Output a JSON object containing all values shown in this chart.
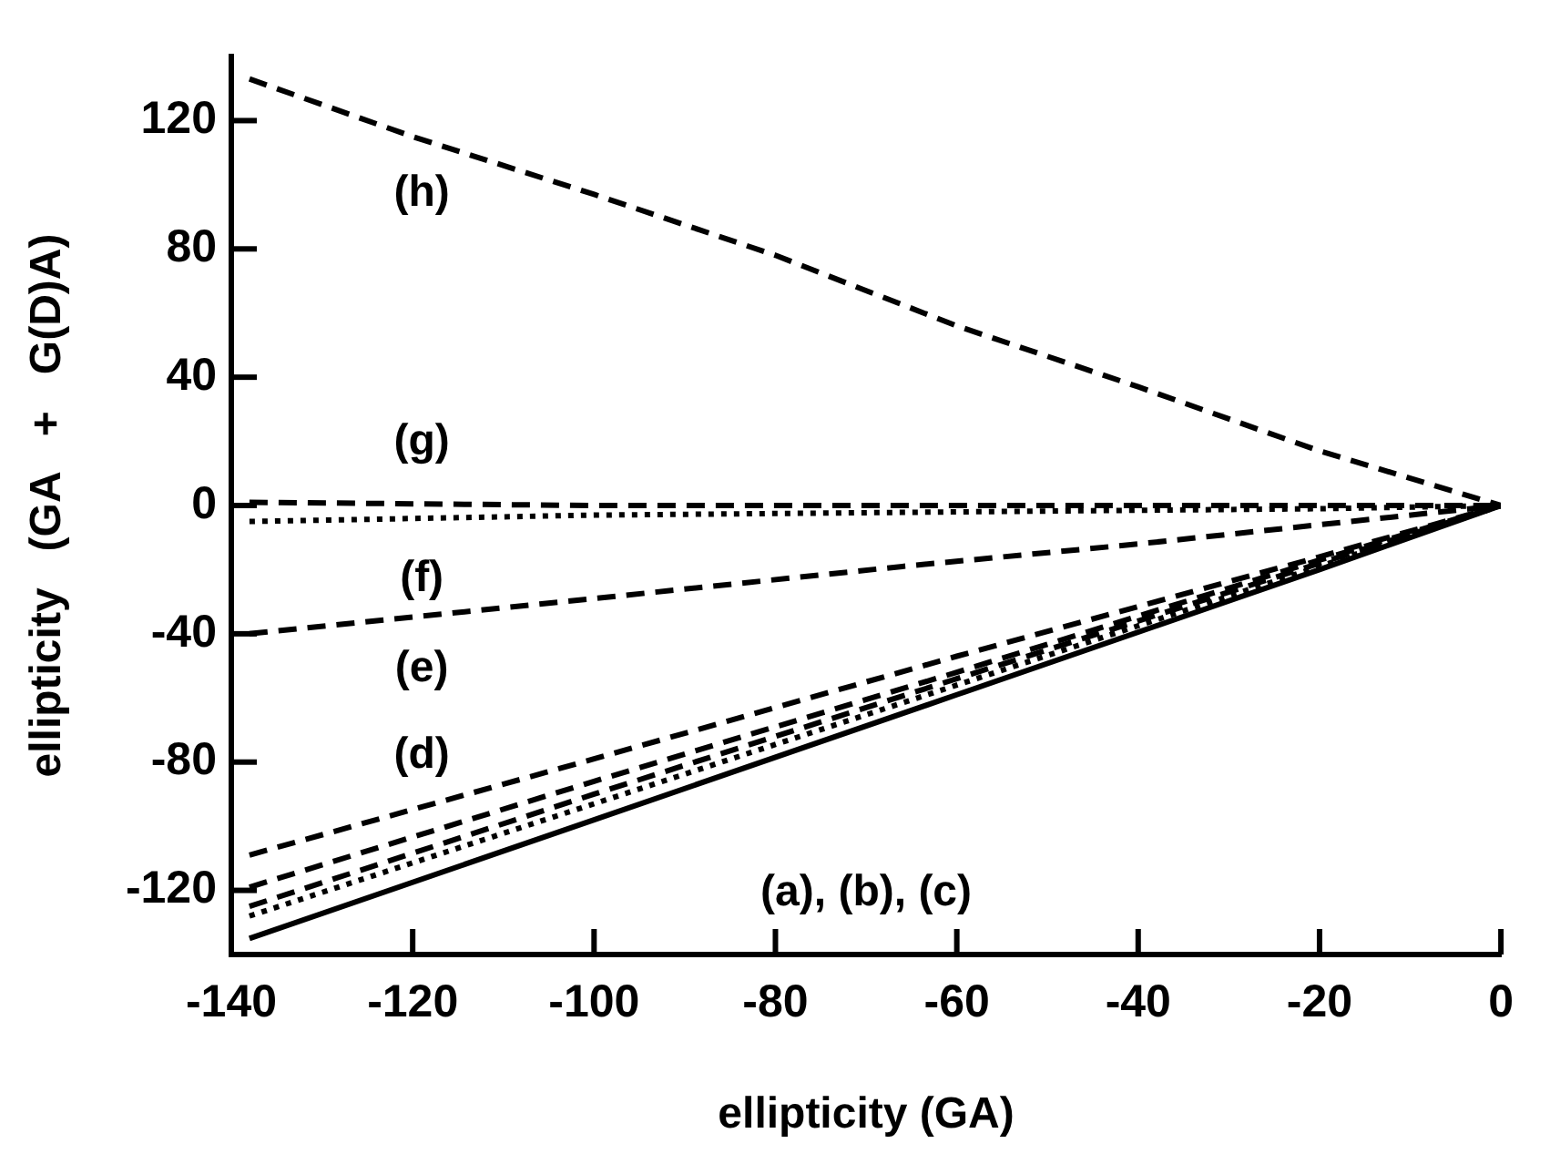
{
  "chart_data": {
    "type": "line",
    "xlabel": "ellipticity (GA)",
    "ylabel": "ellipticity   (GA   +   G(D)A)",
    "xlim": [
      -140,
      0
    ],
    "ylim": [
      -140,
      140
    ],
    "xticks": [
      -140,
      -120,
      -100,
      -80,
      -60,
      -40,
      -20,
      0
    ],
    "yticks": [
      -120,
      -80,
      -40,
      0,
      40,
      80,
      120
    ],
    "grid": false,
    "legend": false,
    "marker": "none",
    "series": [
      {
        "color": "#000000",
        "line_style": "dashed",
        "x": [
          -138,
          -120,
          -100,
          -80,
          -60,
          -40,
          -20,
          0
        ],
        "values": [
          133,
          115,
          97,
          78,
          56,
          37,
          17,
          0
        ]
      },
      {
        "color": "#000000",
        "line_style": "dashed",
        "x": [
          -138,
          -100,
          -60,
          -20,
          0
        ],
        "values": [
          1,
          0,
          0,
          0,
          0
        ]
      },
      {
        "color": "#000000",
        "line_style": "dotted",
        "x": [
          -138,
          -100,
          -60,
          -20,
          0
        ],
        "values": [
          -5,
          -3,
          -2,
          -1,
          0
        ]
      },
      {
        "color": "#000000",
        "line_style": "dashed",
        "x": [
          -138,
          -100,
          -66,
          -40,
          -20,
          0
        ],
        "values": [
          -40,
          -29,
          -19,
          -12,
          -6,
          0
        ]
      },
      {
        "color": "#000000",
        "line_style": "dashed",
        "x": [
          -138,
          -100,
          -60,
          -20,
          0
        ],
        "values": [
          -109,
          -79,
          -47,
          -16,
          0
        ]
      },
      {
        "color": "#000000",
        "line_style": "dashed",
        "x": [
          -138,
          -100,
          -60,
          -20,
          0
        ],
        "values": [
          -119,
          -86,
          -52,
          -17,
          0
        ]
      },
      {
        "color": "#000000",
        "line_style": "dashed",
        "x": [
          -138,
          -100,
          -60,
          -20,
          0
        ],
        "values": [
          -125,
          -90,
          -54,
          -18,
          0
        ]
      },
      {
        "color": "#000000",
        "line_style": "dotted",
        "x": [
          -138,
          -100,
          -60,
          -20,
          0
        ],
        "values": [
          -128,
          -93,
          -56,
          -19,
          0
        ]
      },
      {
        "color": "#000000",
        "line_style": "solid",
        "x": [
          -138,
          -100,
          -60,
          -20,
          0
        ],
        "values": [
          -135,
          -98,
          -59,
          -20,
          0
        ]
      }
    ],
    "annotations": [
      "(h)",
      "(g)",
      "(f)",
      "(e)",
      "(d)",
      "(a), (b), (c)"
    ]
  }
}
